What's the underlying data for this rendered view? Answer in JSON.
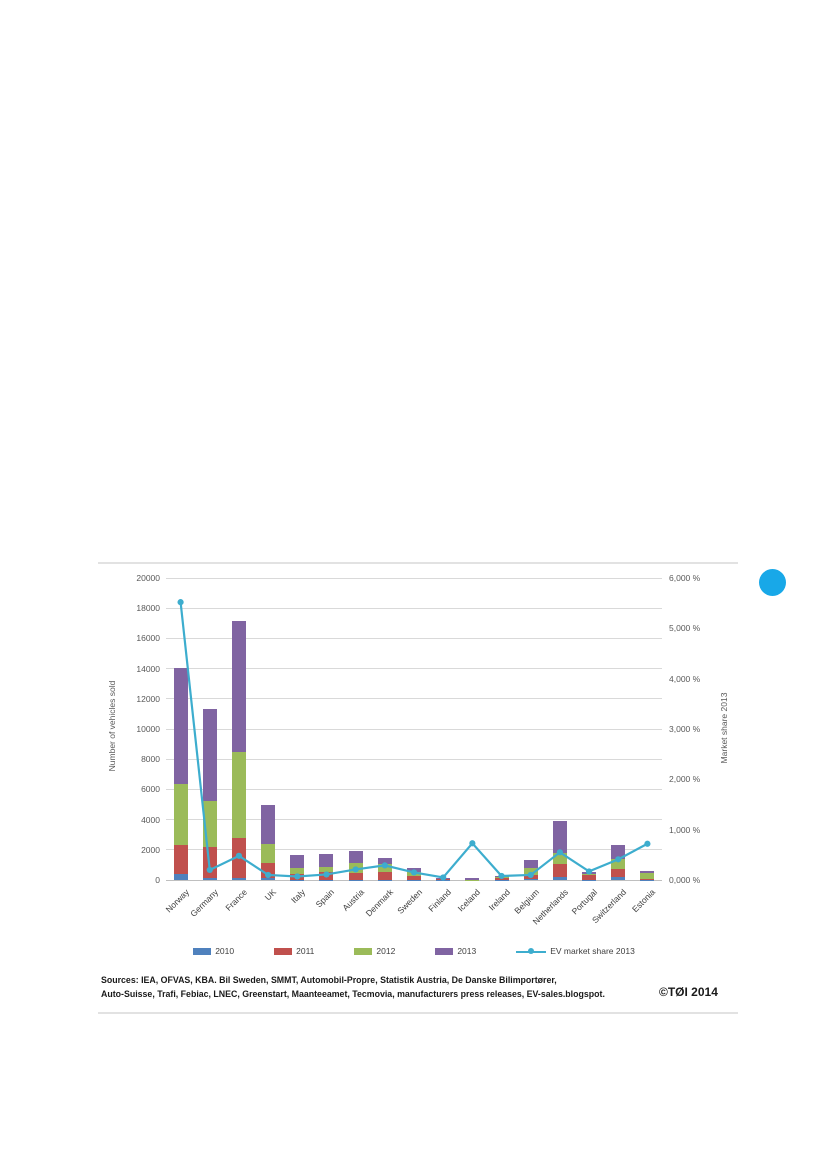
{
  "page": {
    "decorations": {
      "corner_dot_color": "#18a8e8",
      "rule_color": "#e2e2e2"
    }
  },
  "chart_data": {
    "type": "bar",
    "subtype": "stacked-bars-with-secondary-line",
    "categories": [
      "Norway",
      "Germany",
      "France",
      "UK",
      "Italy",
      "Spain",
      "Austria",
      "Denmark",
      "Sweden",
      "Finland",
      "Iceland",
      "Ireland",
      "Belgium",
      "Netherlands",
      "Portugal",
      "Switzerland",
      "Estonia"
    ],
    "series": [
      {
        "name": "2010",
        "color": "#4f81bd",
        "values": [
          390,
          160,
          160,
          110,
          20,
          20,
          20,
          20,
          20,
          10,
          0,
          10,
          40,
          220,
          10,
          180,
          10
        ]
      },
      {
        "name": "2011",
        "color": "#c0504d",
        "values": [
          1960,
          2000,
          2630,
          1000,
          360,
          530,
          470,
          490,
          250,
          60,
          10,
          100,
          280,
          830,
          300,
          550,
          50
        ]
      },
      {
        "name": "2012",
        "color": "#9bbb59",
        "values": [
          3990,
          3090,
          5700,
          1250,
          440,
          340,
          620,
          540,
          280,
          50,
          10,
          70,
          500,
          730,
          90,
          650,
          430
        ]
      },
      {
        "name": "2013",
        "color": "#8064a2",
        "values": [
          7730,
          6050,
          8650,
          2640,
          850,
          820,
          780,
          440,
          270,
          30,
          80,
          70,
          530,
          2150,
          100,
          950,
          130
        ]
      }
    ],
    "line_series": {
      "name": "EV market share 2013",
      "color": "#3dadce",
      "values_percent": [
        5.52,
        0.2,
        0.48,
        0.1,
        0.07,
        0.11,
        0.21,
        0.29,
        0.15,
        0.05,
        0.73,
        0.08,
        0.1,
        0.55,
        0.17,
        0.41,
        0.72
      ]
    },
    "left_axis": {
      "label": "Number of vehicles sold",
      "min": 0,
      "max": 20000,
      "step": 2000,
      "ticks": [
        "0",
        "2000",
        "4000",
        "6000",
        "8000",
        "10000",
        "12000",
        "14000",
        "16000",
        "18000",
        "20000"
      ]
    },
    "right_axis": {
      "label": "Market share 2013",
      "min": 0,
      "max": 6,
      "step": 1,
      "ticks": [
        "0,000 %",
        "1,000 %",
        "2,000 %",
        "3,000 %",
        "4,000 %",
        "5,000 %",
        "6,000 %"
      ]
    },
    "grid": true,
    "legend_position": "bottom"
  },
  "footer": {
    "sources_line1": "Sources: IEA, OFVAS, KBA. Bil Sweden, SMMT, Automobil-Propre, Statistik Austria, De Danske Bilimportører,",
    "sources_line2": "Auto-Suisse,  Trafi, Febiac, LNEC, Greenstart, Maanteeamet,  Tecmovia, manufacturers press releases,  EV-sales.blogspot.",
    "copyright": "©TØI 2014"
  }
}
